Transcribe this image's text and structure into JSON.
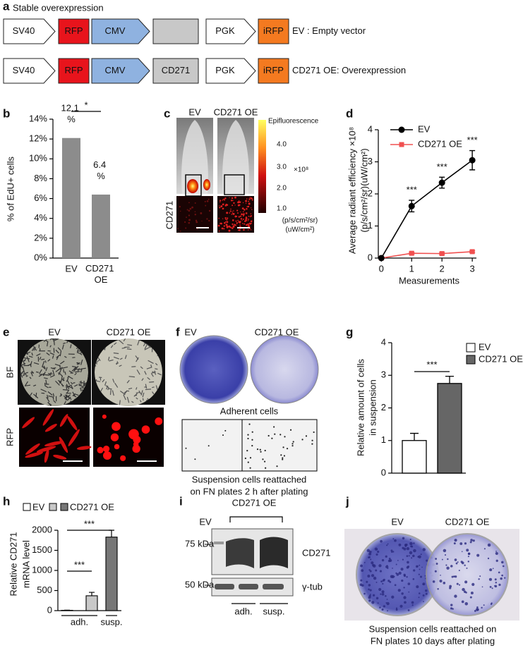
{
  "panel_letters": [
    "a",
    "b",
    "c",
    "d",
    "e",
    "f",
    "g",
    "h",
    "i",
    "j"
  ],
  "construct": {
    "title": "Stable overexpression",
    "rows": [
      {
        "elements": [
          "SV40",
          "RFP",
          "CMV",
          "PGK",
          "iRFP"
        ],
        "caption": "EV : Empty vector"
      },
      {
        "elements": [
          "SV40",
          "RFP",
          "CMV",
          "CD271",
          "PGK",
          "iRFP"
        ],
        "caption": "CD271 OE: Overexpression"
      }
    ]
  },
  "imaging": {
    "columns": [
      "EV",
      "CD271 OE"
    ],
    "colorbar": {
      "title": "Epifluorescence",
      "ticks": [
        "4.0",
        "3.0",
        "2.0",
        "1.0"
      ],
      "scale": "×10⁸",
      "unit": [
        "(p/s/cm²/sr)",
        "(uW/cm²)"
      ]
    },
    "row_label": "CD271"
  },
  "cell_images": {
    "columns": [
      "EV",
      "CD271 OE"
    ],
    "rows": [
      "BF",
      "RFP"
    ]
  },
  "plates": {
    "columns": [
      "EV",
      "CD271 OE"
    ],
    "adherent": "Adherent cells",
    "suspension": [
      "Suspension cells reattached",
      "on FN plates 2 h after plating"
    ]
  },
  "blot": {
    "group": "CD271 OE",
    "lane": "EV",
    "markers": [
      "75 kDa",
      "50 kDa"
    ],
    "proteins": [
      "CD271",
      "γ-tub"
    ],
    "groups": [
      "adh.",
      "susp."
    ]
  },
  "colonies": {
    "columns": [
      "EV",
      "CD271 OE"
    ],
    "caption": [
      "Suspension cells reattached on",
      "FN plates 10 days after plating"
    ]
  },
  "chart_data": [
    {
      "type": "bar",
      "categories": [
        "EV",
        "CD271 OE"
      ],
      "values": [
        12.1,
        6.4
      ],
      "value_labels": [
        "12.1 %",
        "6.4 %"
      ],
      "color": "#8c8c8c",
      "ylim": [
        0,
        14
      ],
      "yticks": [
        {
          "value": 0,
          "label": "0%"
        },
        {
          "value": 2,
          "label": "2%"
        },
        {
          "value": 4,
          "label": "4%"
        },
        {
          "value": 6,
          "label": "6%"
        },
        {
          "value": 8,
          "label": "8%"
        },
        {
          "value": 10,
          "label": "10%"
        },
        {
          "value": 12,
          "label": "12%"
        },
        {
          "value": 14,
          "label": "14%"
        }
      ],
      "ylabel": "% of EdU+ cells",
      "significance": "*"
    },
    {
      "type": "line",
      "x": [
        0,
        1,
        2,
        3
      ],
      "xlim": [
        -0.1,
        3.3
      ],
      "xticks": [
        0,
        1,
        2,
        3
      ],
      "ylim": [
        0,
        4
      ],
      "yticks": [
        0,
        1,
        2,
        3,
        4
      ],
      "xlabel": "Measurements",
      "ylabel": [
        "Average radiant efficiency ×10⁸",
        "(p/s/cm²/sr)(uW/cm²)"
      ],
      "legend": "upper left",
      "series": [
        {
          "name": "EV",
          "color": "#000000",
          "values": [
            0,
            1.62,
            2.35,
            3.05
          ],
          "errors": [
            0,
            0.18,
            0.17,
            0.3
          ]
        },
        {
          "name": "CD271 OE",
          "color": "#f05050",
          "values": [
            0,
            0.15,
            0.14,
            0.2
          ],
          "errors": [
            0,
            0.03,
            0.03,
            0.03
          ]
        }
      ],
      "annotations": [
        "***",
        "***",
        "***"
      ]
    },
    {
      "type": "bar",
      "ylim": [
        0,
        4
      ],
      "yticks": [
        0,
        1,
        2,
        3,
        4
      ],
      "ylabel": [
        "Relative amount of cells",
        "in suspension"
      ],
      "legend": "upper right",
      "series": [
        {
          "name": "EV",
          "color": "#ffffff",
          "values": [
            1.0
          ],
          "errors": [
            0.22
          ]
        },
        {
          "name": "CD271 OE",
          "color": "#666666",
          "values": [
            2.75
          ],
          "errors": [
            0.22
          ]
        }
      ],
      "significance": "***"
    },
    {
      "type": "bar",
      "categories": [
        "adh.",
        "susp."
      ],
      "ylim": [
        0,
        2000
      ],
      "yticks": [
        0,
        500,
        1000,
        1500,
        2000
      ],
      "ylabel": [
        "Relative CD271",
        "mRNA level"
      ],
      "series": [
        {
          "name": "EV",
          "color": "#ffffff",
          "values": [
            8,
            null
          ],
          "errors": [
            4,
            null
          ]
        },
        {
          "color": "#c8c8c8",
          "values": [
            370,
            null
          ],
          "errors": [
            85,
            null
          ]
        },
        {
          "name": "CD271 OE",
          "color": "#777777",
          "values": [
            null,
            1830
          ],
          "errors": [
            null,
            170
          ]
        }
      ],
      "significance": [
        "***",
        "***"
      ]
    }
  ]
}
